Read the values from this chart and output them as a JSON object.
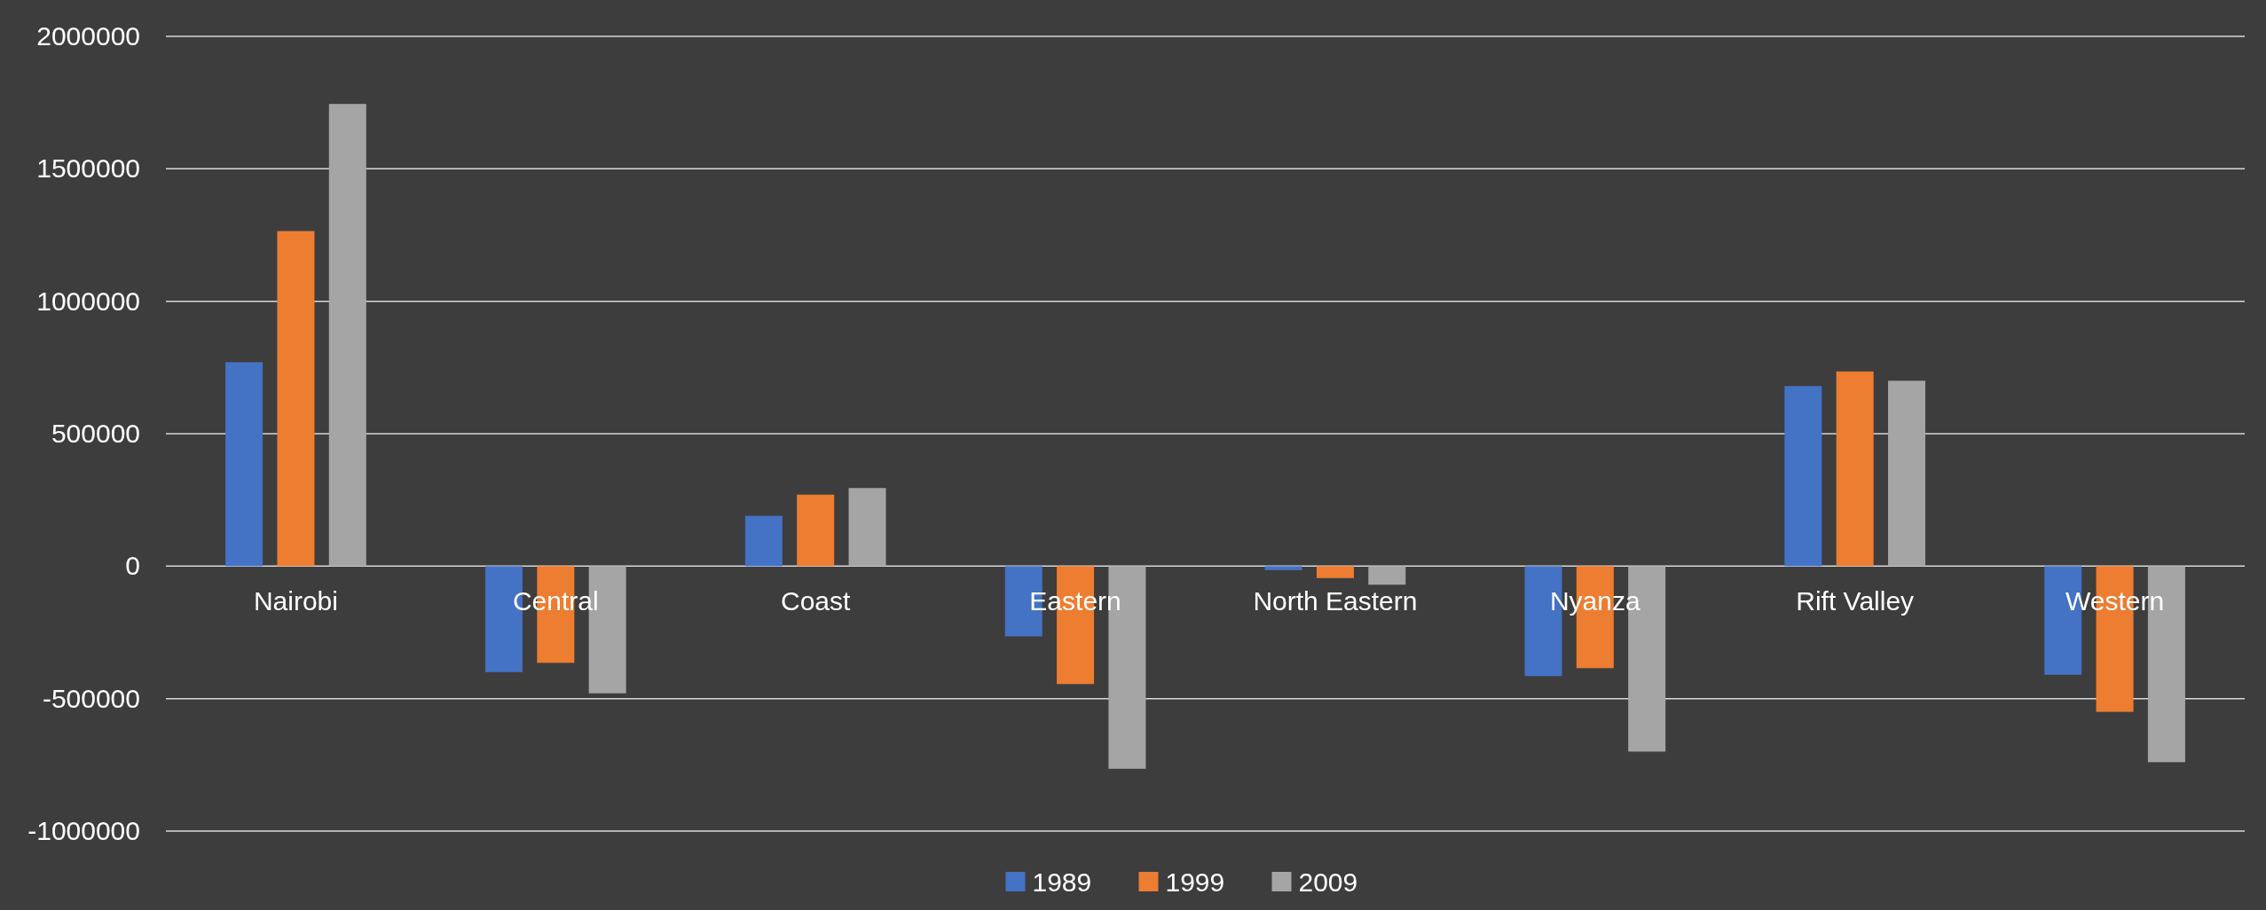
{
  "chart_data": {
    "type": "bar",
    "categories": [
      "Nairobi",
      "Central",
      "Coast",
      "Eastern",
      "North Eastern",
      "Nyanza",
      "Rift Valley",
      "Western"
    ],
    "series": [
      {
        "name": "1989",
        "color": "#4472c4",
        "values": [
          770000,
          -400000,
          190000,
          -265000,
          -15000,
          -415000,
          680000,
          -410000
        ]
      },
      {
        "name": "1999",
        "color": "#ed7d31",
        "values": [
          1265000,
          -365000,
          270000,
          -445000,
          -45000,
          -385000,
          735000,
          -550000
        ]
      },
      {
        "name": "2009",
        "color": "#a5a5a5",
        "values": [
          1745000,
          -480000,
          295000,
          -765000,
          -70000,
          -700000,
          700000,
          -740000
        ]
      }
    ],
    "ylim": [
      -1000000,
      2000000
    ],
    "yticks": [
      -1000000,
      -500000,
      0,
      500000,
      1000000,
      1500000,
      2000000
    ],
    "grid": "y",
    "legend": "bottom"
  }
}
